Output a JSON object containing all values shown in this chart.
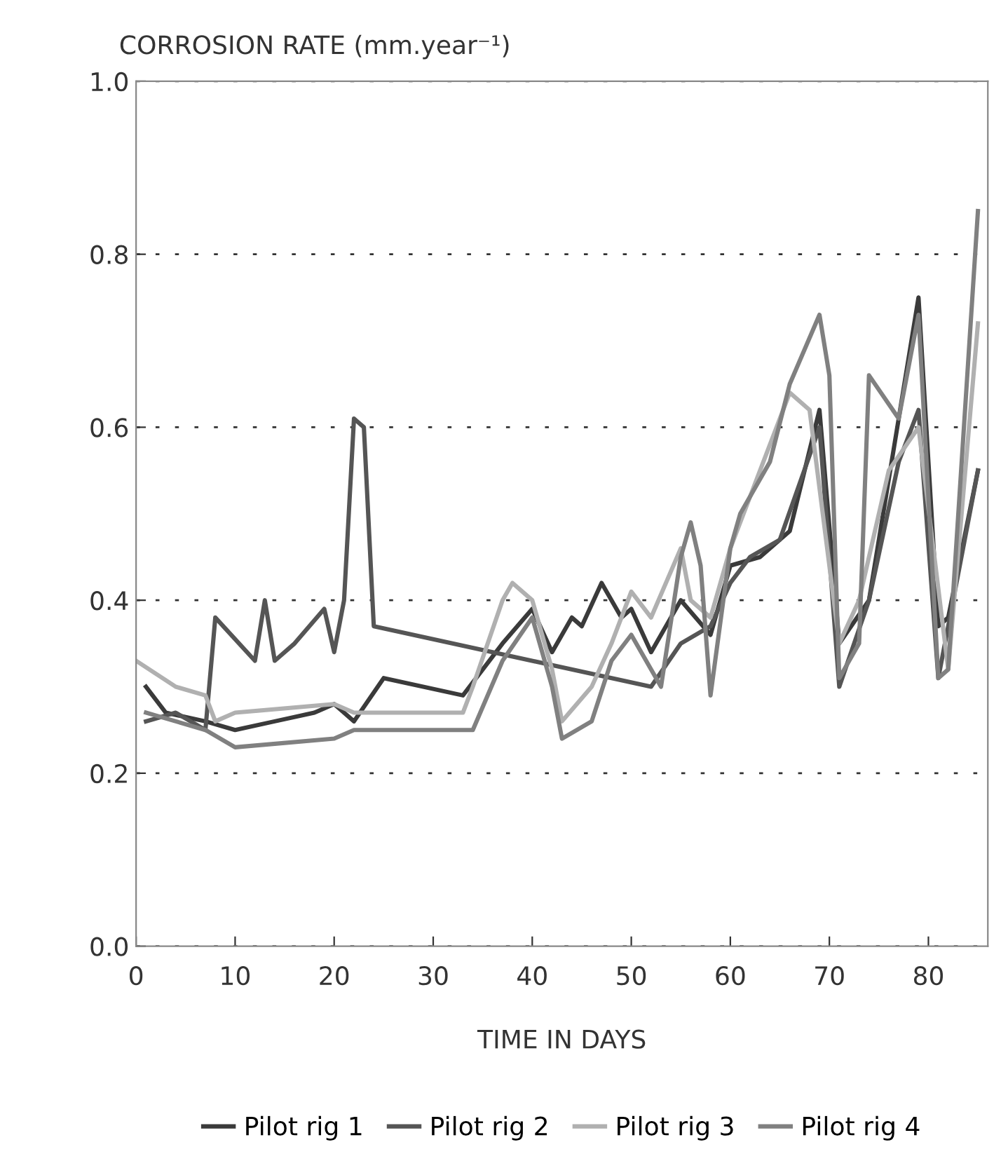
{
  "chart_data": {
    "type": "line",
    "title": "CORROSION RATE (mm.year⁻¹)",
    "xlabel": "TIME IN DAYS",
    "xlim": [
      0,
      86
    ],
    "xticks": [
      0,
      10,
      20,
      30,
      40,
      50,
      60,
      70,
      80
    ],
    "ylim": [
      0.0,
      1.0
    ],
    "yticks": [
      {
        "value": 0.0,
        "label": "0.0"
      },
      0.2,
      0.4,
      0.6,
      0.8,
      {
        "value": 1.0,
        "label": "1.0"
      }
    ],
    "grid": "y",
    "legend": "bottom",
    "line_style": "solid",
    "marker": "none",
    "series": [
      {
        "name": "Pilot rig 1",
        "color": "#3a3a3a",
        "x": [
          1,
          3,
          7,
          10,
          14,
          18,
          20,
          22,
          25,
          33,
          37,
          40,
          42,
          44,
          45,
          47,
          49,
          50,
          52,
          55,
          58,
          60,
          63,
          66,
          69,
          71,
          74,
          79,
          81,
          82,
          85
        ],
        "values": [
          0.3,
          0.27,
          0.26,
          0.25,
          0.26,
          0.27,
          0.28,
          0.26,
          0.31,
          0.29,
          0.35,
          0.39,
          0.34,
          0.38,
          0.37,
          0.42,
          0.38,
          0.39,
          0.34,
          0.4,
          0.36,
          0.44,
          0.45,
          0.48,
          0.62,
          0.35,
          0.4,
          0.75,
          0.37,
          0.38,
          0.55
        ]
      },
      {
        "name": "Pilot rig 2",
        "color": "#555555",
        "x": [
          1,
          4,
          7,
          8,
          12,
          13,
          14,
          16,
          19,
          20,
          21,
          22,
          23,
          24,
          52,
          55,
          58,
          60,
          62,
          65,
          69,
          71,
          74,
          77,
          79,
          81,
          85
        ],
        "values": [
          0.26,
          0.27,
          0.25,
          0.38,
          0.33,
          0.4,
          0.33,
          0.35,
          0.39,
          0.34,
          0.4,
          0.61,
          0.6,
          0.37,
          0.3,
          0.35,
          0.37,
          0.42,
          0.45,
          0.47,
          0.6,
          0.3,
          0.4,
          0.56,
          0.62,
          0.31,
          0.55
        ]
      },
      {
        "name": "Pilot rig 3",
        "color": "#b0b0b0",
        "x": [
          0,
          4,
          7,
          8,
          10,
          20,
          22,
          33,
          34,
          37,
          38,
          40,
          42,
          43,
          46,
          48,
          50,
          52,
          55,
          56,
          58,
          60,
          63,
          66,
          68,
          71,
          73,
          76,
          79,
          82,
          85
        ],
        "values": [
          0.33,
          0.3,
          0.29,
          0.26,
          0.27,
          0.28,
          0.27,
          0.27,
          0.3,
          0.4,
          0.42,
          0.4,
          0.32,
          0.26,
          0.3,
          0.35,
          0.41,
          0.38,
          0.46,
          0.4,
          0.38,
          0.46,
          0.55,
          0.64,
          0.62,
          0.35,
          0.4,
          0.55,
          0.6,
          0.32,
          0.72
        ]
      },
      {
        "name": "Pilot rig 4",
        "color": "#808080",
        "x": [
          1,
          7,
          10,
          20,
          22,
          34,
          37,
          40,
          42,
          43,
          46,
          48,
          50,
          53,
          55,
          56,
          57,
          58,
          60,
          61,
          64,
          66,
          69,
          70,
          71,
          73,
          74,
          77,
          79,
          81,
          82,
          85
        ],
        "values": [
          0.27,
          0.25,
          0.23,
          0.24,
          0.25,
          0.25,
          0.33,
          0.38,
          0.3,
          0.24,
          0.26,
          0.33,
          0.36,
          0.3,
          0.45,
          0.49,
          0.44,
          0.29,
          0.46,
          0.5,
          0.56,
          0.65,
          0.73,
          0.66,
          0.31,
          0.35,
          0.66,
          0.61,
          0.73,
          0.31,
          0.32,
          0.85
        ]
      }
    ]
  }
}
